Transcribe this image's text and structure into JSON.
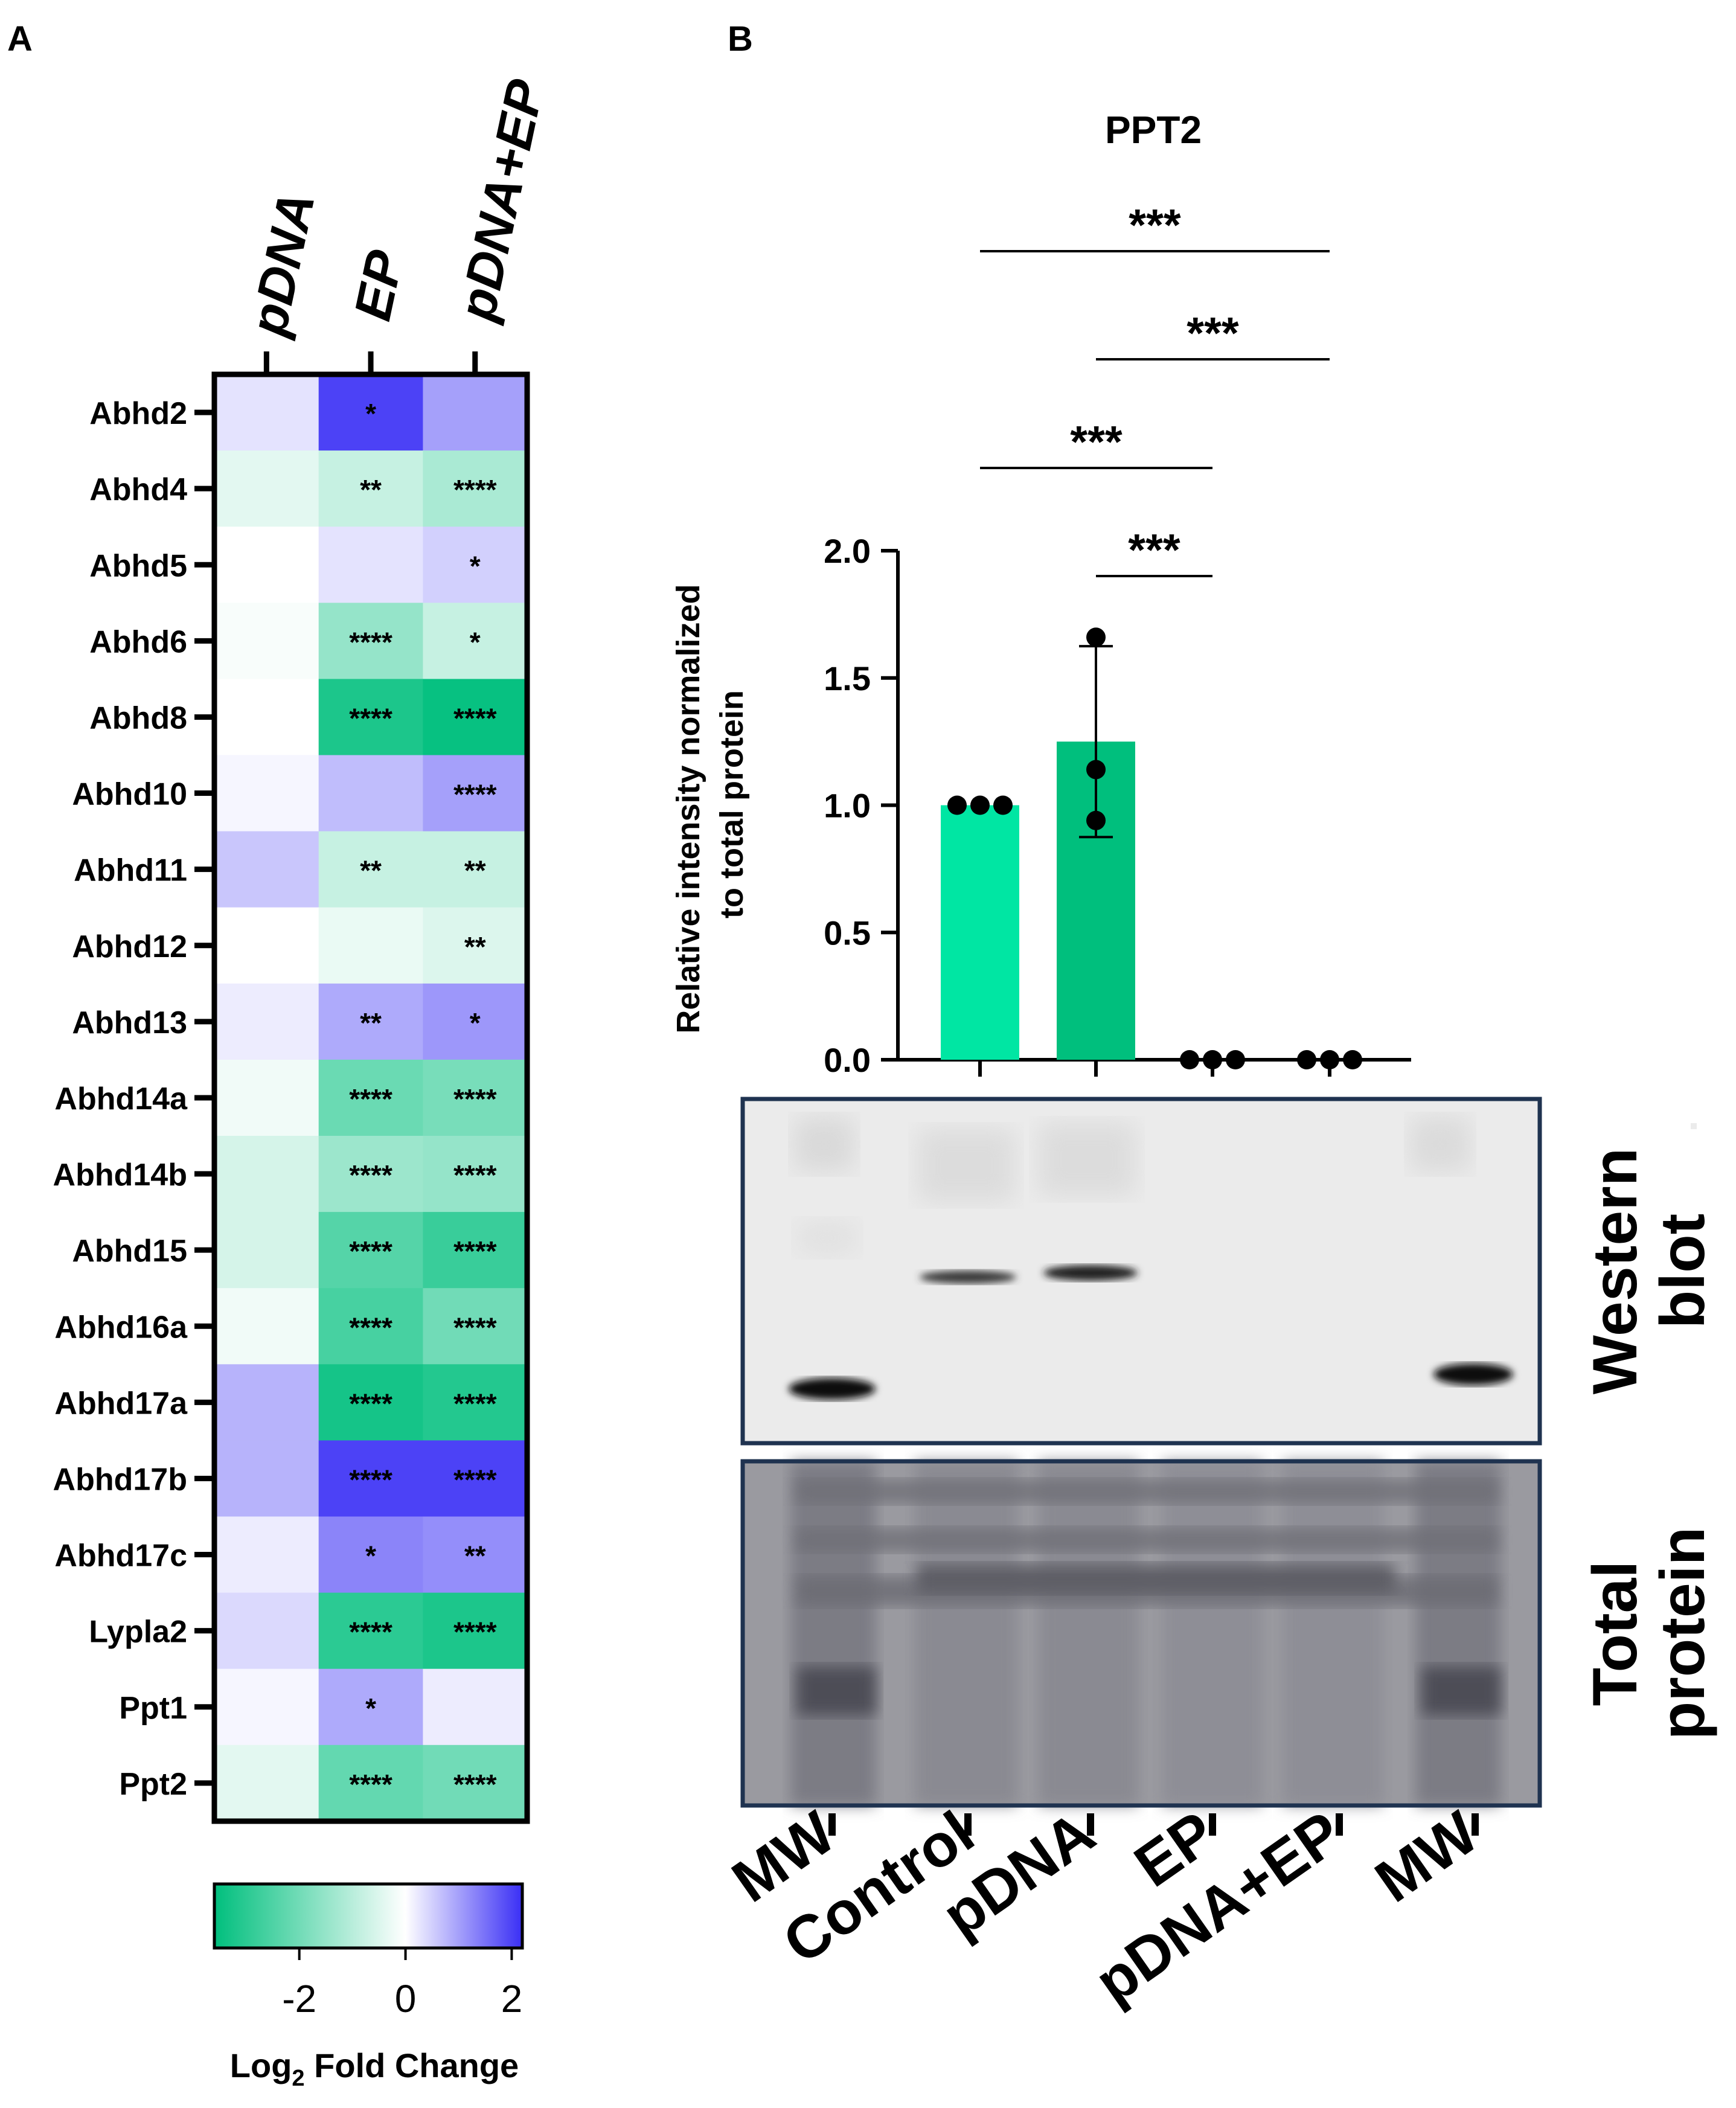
{
  "panels": {
    "a_letter": "A",
    "b_letter": "B"
  },
  "heatmap": {
    "columns": [
      "pDNA",
      "EP",
      "pDNA+EP"
    ],
    "rows": [
      {
        "gene": "Abhd2",
        "values": [
          0.3,
          2.0,
          1.0
        ],
        "sig": [
          "",
          "*",
          ""
        ]
      },
      {
        "gene": "Abhd4",
        "values": [
          -0.4,
          -0.8,
          -1.2
        ],
        "sig": [
          "",
          "**",
          "****"
        ]
      },
      {
        "gene": "Abhd5",
        "values": [
          0.0,
          0.3,
          0.5
        ],
        "sig": [
          "",
          "",
          "*"
        ]
      },
      {
        "gene": "Abhd6",
        "values": [
          -0.1,
          -1.5,
          -0.8
        ],
        "sig": [
          "",
          "****",
          "*"
        ]
      },
      {
        "gene": "Abhd8",
        "values": [
          0.0,
          -3.2,
          -3.5
        ],
        "sig": [
          "",
          "****",
          "****"
        ]
      },
      {
        "gene": "Abhd10",
        "values": [
          0.1,
          0.7,
          1.0
        ],
        "sig": [
          "",
          "",
          "****"
        ]
      },
      {
        "gene": "Abhd11",
        "values": [
          0.6,
          -0.8,
          -0.8
        ],
        "sig": [
          "",
          "**",
          "**"
        ]
      },
      {
        "gene": "Abhd12",
        "values": [
          0.0,
          -0.3,
          -0.5
        ],
        "sig": [
          "",
          "",
          "**"
        ]
      },
      {
        "gene": "Abhd13",
        "values": [
          0.2,
          0.9,
          1.1
        ],
        "sig": [
          "",
          "**",
          "*"
        ]
      },
      {
        "gene": "Abhd14a",
        "values": [
          -0.2,
          -2.1,
          -1.9
        ],
        "sig": [
          "",
          "****",
          "****"
        ]
      },
      {
        "gene": "Abhd14b",
        "values": [
          -0.6,
          -1.4,
          -1.5
        ],
        "sig": [
          "",
          "****",
          "****"
        ]
      },
      {
        "gene": "Abhd15",
        "values": [
          -0.6,
          -2.4,
          -2.8
        ],
        "sig": [
          "",
          "****",
          "****"
        ]
      },
      {
        "gene": "Abhd16a",
        "values": [
          -0.2,
          -2.6,
          -2.0
        ],
        "sig": [
          "",
          "****",
          "****"
        ]
      },
      {
        "gene": "Abhd17a",
        "values": [
          0.8,
          -3.3,
          -3.1
        ],
        "sig": [
          "",
          "****",
          "****"
        ]
      },
      {
        "gene": "Abhd17b",
        "values": [
          0.8,
          2.0,
          2.0
        ],
        "sig": [
          "",
          "****",
          "****"
        ]
      },
      {
        "gene": "Abhd17c",
        "values": [
          0.2,
          1.3,
          1.2
        ],
        "sig": [
          "",
          "*",
          "**"
        ]
      },
      {
        "gene": "Lypla2",
        "values": [
          0.4,
          -3.0,
          -3.2
        ],
        "sig": [
          "",
          "****",
          "****"
        ]
      },
      {
        "gene": "Ppt1",
        "values": [
          0.1,
          0.9,
          0.2
        ],
        "sig": [
          "",
          "*",
          ""
        ]
      },
      {
        "gene": "Ppt2",
        "values": [
          -0.4,
          -2.2,
          -2.0
        ],
        "sig": [
          "",
          "****",
          "****"
        ]
      }
    ],
    "colorbar": {
      "colors": {
        "low": "#00bf7d",
        "mid": "#ffffff",
        "high": "#3a2ff5"
      },
      "range": [
        -3.6,
        2.2
      ],
      "ticks": [
        "-2",
        "0",
        "2"
      ],
      "tick_values": [
        -2,
        0,
        2
      ],
      "label_main": "Log",
      "label_sub": "2",
      "label_rest": " Fold Change"
    }
  },
  "chart_data": {
    "type": "bar",
    "title": "PPT2",
    "ylabel_line1": "Relative intensity normalized",
    "ylabel_line2": "to total protein",
    "categories": [
      "Control",
      "pDNA",
      "EP",
      "pDNA+EP"
    ],
    "values": [
      1.0,
      1.25,
      0.0,
      0.0
    ],
    "error": [
      0.0,
      0.375,
      0.0,
      0.0
    ],
    "points": [
      [
        1.0,
        1.0,
        1.0
      ],
      [
        1.66,
        1.14,
        0.94
      ],
      [
        0.0,
        0.0,
        0.0
      ],
      [
        0.0,
        0.0,
        0.0
      ]
    ],
    "bar_colors": [
      "#00e6a3",
      "#00bf7d",
      "#00bf7d",
      "#00bf7d"
    ],
    "ylim": [
      0,
      2.0
    ],
    "yticks": [
      "0.0",
      "0.5",
      "1.0",
      "1.5",
      "2.0"
    ],
    "ytick_values": [
      0,
      0.5,
      1.0,
      1.5,
      2.0
    ],
    "significance": [
      {
        "from": "Control",
        "to": "pDNA+EP",
        "label": "***"
      },
      {
        "from": "pDNA",
        "to": "pDNA+EP",
        "label": "***"
      },
      {
        "from": "Control",
        "to": "EP",
        "label": "***"
      },
      {
        "from": "pDNA",
        "to": "EP",
        "label": "***"
      }
    ]
  },
  "blot": {
    "western_label": [
      "Western",
      "blot"
    ],
    "total_label": [
      "Total",
      "protein"
    ],
    "lanes": [
      "MW",
      "Control",
      "pDNA",
      "EP",
      "pDNA+EP",
      "MW"
    ]
  }
}
